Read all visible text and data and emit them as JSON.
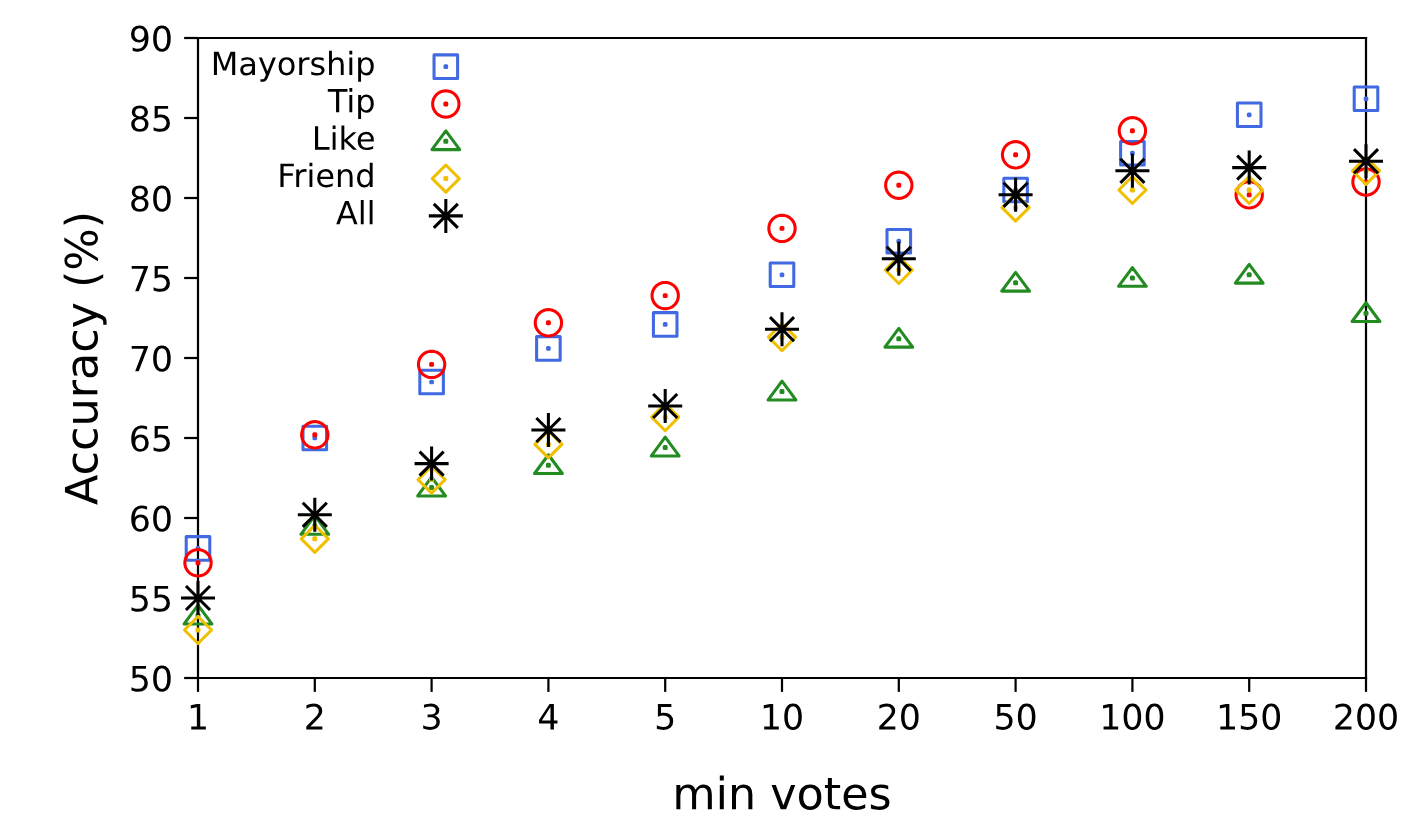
{
  "chart_data": {
    "type": "scatter",
    "xlabel": "min votes",
    "ylabel": "Accuracy (%)",
    "categories": [
      "1",
      "2",
      "3",
      "4",
      "5",
      "10",
      "20",
      "50",
      "100",
      "150",
      "200"
    ],
    "ylim": [
      50,
      90
    ],
    "yticks": [
      50,
      55,
      60,
      65,
      70,
      75,
      80,
      85,
      90
    ],
    "grid": false,
    "legend": "top left",
    "series": [
      {
        "name": "Mayorship",
        "color": "#4169e1",
        "marker": "square",
        "values": [
          58.1,
          65.0,
          68.5,
          70.6,
          72.1,
          75.2,
          77.3,
          80.5,
          82.8,
          85.2,
          86.2
        ]
      },
      {
        "name": "Tip",
        "color": "#ff0000",
        "marker": "circle",
        "values": [
          57.2,
          65.2,
          69.6,
          72.2,
          73.9,
          78.1,
          80.8,
          82.7,
          84.2,
          80.2,
          81.0
        ]
      },
      {
        "name": "Like",
        "color": "#228b22",
        "marker": "triangle",
        "values": [
          53.9,
          59.5,
          61.9,
          63.3,
          64.4,
          67.9,
          71.2,
          74.7,
          75.0,
          75.2,
          72.8
        ]
      },
      {
        "name": "Friend",
        "color": "#f0c000",
        "marker": "diamond",
        "values": [
          53.0,
          58.7,
          62.4,
          64.6,
          66.3,
          71.3,
          75.5,
          79.4,
          80.5,
          80.5,
          81.7
        ]
      },
      {
        "name": "All",
        "color": "#000000",
        "marker": "cross",
        "values": [
          55.0,
          60.2,
          63.4,
          65.5,
          67.0,
          71.8,
          76.2,
          80.2,
          81.7,
          81.9,
          82.3
        ]
      }
    ]
  }
}
